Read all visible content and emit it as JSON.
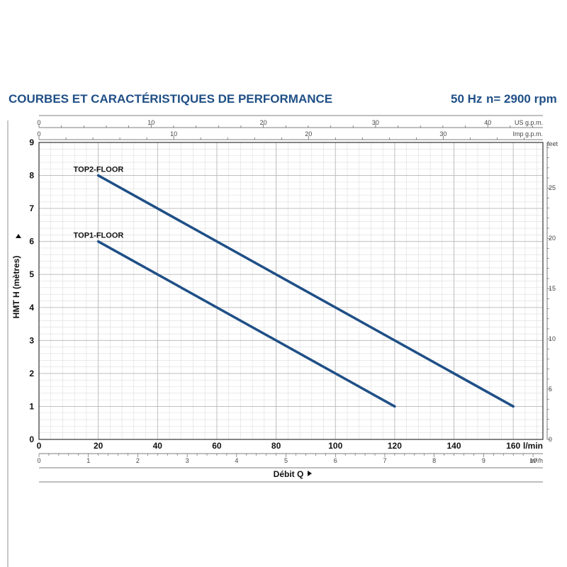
{
  "header": {
    "title": "COURBES ET CARACTÉRISTIQUES DE PERFORMANCE",
    "frequency": "50 Hz",
    "speed": "n= 2900 rpm"
  },
  "colors": {
    "title": "#1f4f86",
    "curve": "#1f4f86",
    "grid": "#c8c8c8"
  },
  "chart_data": {
    "type": "line",
    "xlabel": "Débit Q",
    "ylabel": "HMT H (mètres)",
    "xlim": [
      0,
      170
    ],
    "ylim": [
      0,
      9
    ],
    "grid": true,
    "x_unit": "l/min",
    "x_ticks": [
      "0",
      "20",
      "40",
      "60",
      "80",
      "100",
      "120",
      "140",
      "160"
    ],
    "y_ticks": [
      "0",
      "1",
      "2",
      "3",
      "4",
      "5",
      "6",
      "7",
      "8",
      "9"
    ],
    "series": [
      {
        "name": "TOP2-FLOOR",
        "x": [
          20,
          160
        ],
        "y": [
          8,
          1
        ]
      },
      {
        "name": "TOP1-FLOOR",
        "x": [
          20,
          120
        ],
        "y": [
          6,
          1
        ]
      }
    ],
    "secondary_axes": {
      "us_gpm": {
        "unit": "US g.p.m.",
        "ticks": [
          "0",
          "10",
          "20",
          "30",
          "40"
        ],
        "factor": 3.785
      },
      "imp_gpm": {
        "unit": "Imp g.p.m.",
        "ticks": [
          "0",
          "10",
          "20",
          "30"
        ],
        "factor": 4.546
      },
      "m3h": {
        "unit": "m³/h",
        "ticks": [
          "0",
          "1",
          "2",
          "3",
          "4",
          "5",
          "6",
          "7",
          "8",
          "9",
          "10"
        ],
        "factor": 16.667
      },
      "feet": {
        "unit": "feet",
        "ticks": [
          "0",
          "5",
          "10",
          "15",
          "20",
          "25"
        ],
        "factor": 0.3048
      }
    }
  }
}
